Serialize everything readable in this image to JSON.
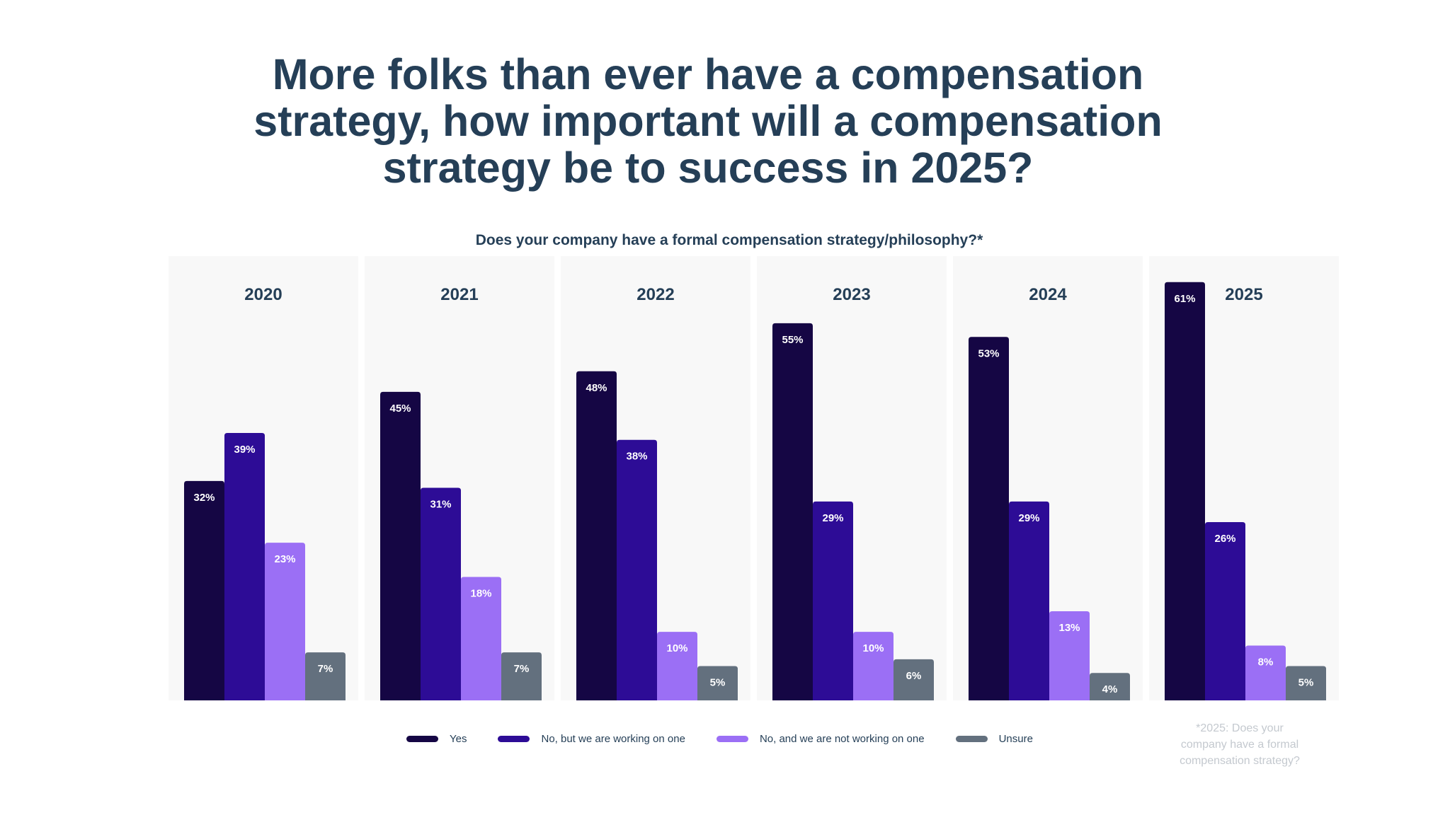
{
  "title_lines": [
    "More folks than ever have a compensation",
    "strategy, how important will a compensation",
    "strategy be to success in 2025?"
  ],
  "chart_data": {
    "type": "bar",
    "title": "Does your company have a formal compensation strategy/philosophy?*",
    "categories": [
      "2020",
      "2021",
      "2022",
      "2023",
      "2024",
      "2025"
    ],
    "series": [
      {
        "name": "Yes",
        "color": "#150644",
        "values": [
          32,
          45,
          48,
          55,
          53,
          61
        ]
      },
      {
        "name": "No, but we are working on one",
        "color": "#2d0c96",
        "values": [
          39,
          31,
          38,
          29,
          29,
          26
        ]
      },
      {
        "name": "No, and we are not working on one",
        "color": "#9b6ff5",
        "values": [
          23,
          18,
          10,
          10,
          13,
          8
        ]
      },
      {
        "name": "Unsure",
        "color": "#63707e",
        "values": [
          7,
          7,
          5,
          6,
          4,
          5
        ]
      }
    ],
    "value_suffix": "%",
    "ylim": [
      0,
      65
    ],
    "grid": false,
    "legend_position": "bottom",
    "panel_color": "#f8f8f8"
  },
  "footnote_lines": [
    "*2025: Does your",
    "company have a formal",
    "compensation strategy?"
  ]
}
